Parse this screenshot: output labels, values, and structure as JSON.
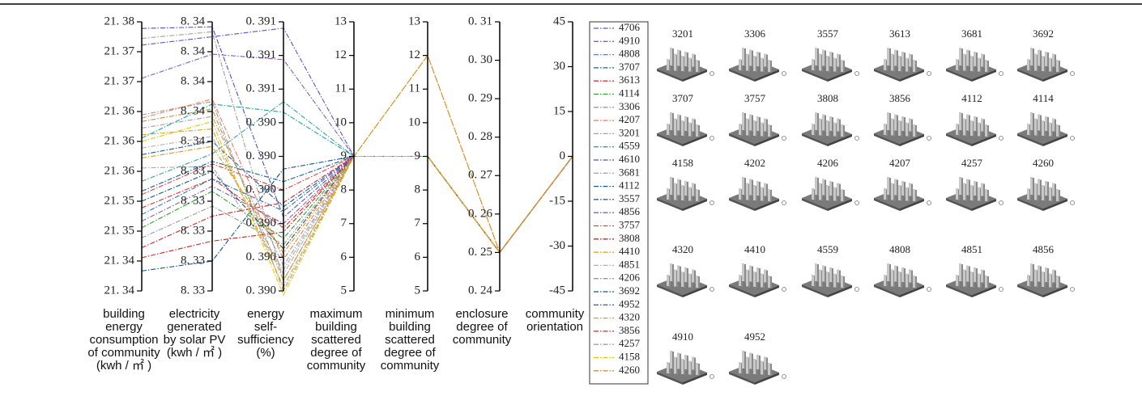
{
  "chart_data": {
    "type": "parallel",
    "dashed": true,
    "axes": [
      {
        "label": [
          "building",
          "energy",
          "consumption",
          "of community",
          "(kwh / ㎡ )"
        ],
        "ylim": [
          21.3375,
          21.378
        ],
        "yticks": [
          {
            "value": 21.3375,
            "label": "21. 34"
          },
          {
            "value": 21.342,
            "label": "21. 34"
          },
          {
            "value": 21.3465,
            "label": "21. 35"
          },
          {
            "value": 21.351,
            "label": "21. 35"
          },
          {
            "value": 21.3555,
            "label": "21. 36"
          },
          {
            "value": 21.36,
            "label": "21. 36"
          },
          {
            "value": 21.3645,
            "label": "21. 36"
          },
          {
            "value": 21.369,
            "label": "21. 37"
          },
          {
            "value": 21.3735,
            "label": "21. 37"
          },
          {
            "value": 21.378,
            "label": "21. 38"
          }
        ]
      },
      {
        "label": [
          "electricity",
          "generated",
          "by solar PV",
          "(kwh / ㎡ )"
        ],
        "ylim": [
          8.33,
          8.3408
        ],
        "yticks": [
          {
            "value": 8.33,
            "label": "8. 33"
          },
          {
            "value": 8.3312,
            "label": "8. 33"
          },
          {
            "value": 8.3324,
            "label": "8. 33"
          },
          {
            "value": 8.3336,
            "label": "8. 33"
          },
          {
            "value": 8.3348,
            "label": "8. 33"
          },
          {
            "value": 8.336,
            "label": "8. 34"
          },
          {
            "value": 8.3372,
            "label": "8. 34"
          },
          {
            "value": 8.3384,
            "label": "8. 34"
          },
          {
            "value": 8.3396,
            "label": "8. 34"
          },
          {
            "value": 8.3408,
            "label": "8. 34"
          }
        ]
      },
      {
        "label": [
          "energy",
          "self-",
          "sufficiency",
          "(%)"
        ],
        "ylim": [
          0.3896,
          0.39088
        ],
        "yticks": [
          {
            "value": 0.3896,
            "label": "0. 390"
          },
          {
            "value": 0.38976,
            "label": "0. 390"
          },
          {
            "value": 0.38992,
            "label": "0. 390"
          },
          {
            "value": 0.39008,
            "label": "0. 390"
          },
          {
            "value": 0.39024,
            "label": "0. 390"
          },
          {
            "value": 0.3904,
            "label": "0. 390"
          },
          {
            "value": 0.39056,
            "label": "0. 391"
          },
          {
            "value": 0.39072,
            "label": "0. 391"
          },
          {
            "value": 0.39088,
            "label": "0. 391"
          }
        ]
      },
      {
        "label": [
          "maximum",
          "building",
          "scattered",
          "degree of",
          "community"
        ],
        "ylim": [
          5,
          13
        ],
        "yticks": [
          5,
          6,
          7,
          8,
          9,
          10,
          11,
          12,
          13
        ]
      },
      {
        "label": [
          "minimum",
          "building",
          "scattered",
          "degree of",
          "community"
        ],
        "ylim": [
          5,
          13
        ],
        "yticks": [
          5,
          6,
          7,
          8,
          9,
          10,
          11,
          12,
          13
        ]
      },
      {
        "label": [
          "enclosure",
          "degree of",
          "community"
        ],
        "ylim": [
          0.24,
          0.31
        ],
        "yticks": [
          {
            "value": 0.24,
            "label": "0. 24"
          },
          {
            "value": 0.25,
            "label": "0. 25"
          },
          {
            "value": 0.26,
            "label": "0. 26"
          },
          {
            "value": 0.27,
            "label": "0. 27"
          },
          {
            "value": 0.28,
            "label": "0. 28"
          },
          {
            "value": 0.29,
            "label": "0. 29"
          },
          {
            "value": 0.3,
            "label": "0. 30"
          },
          {
            "value": 0.31,
            "label": "0. 31"
          }
        ]
      },
      {
        "label": [
          "community",
          "orientation"
        ],
        "ylim": [
          -45,
          45
        ],
        "yticks": [
          -45,
          -30,
          -15,
          0,
          15,
          30,
          45
        ]
      }
    ],
    "series": [
      {
        "name": "4706",
        "color": "#5b55c8",
        "values": [
          21.3745,
          8.3402,
          0.39085,
          9,
          9,
          0.25,
          0
        ]
      },
      {
        "name": "4910",
        "color": "#8a5cc0",
        "values": [
          21.3695,
          8.3395,
          0.3907,
          9,
          9,
          0.25,
          0
        ]
      },
      {
        "name": "4808",
        "color": "#1aa7a0",
        "values": [
          21.3605,
          8.3375,
          0.39045,
          9,
          9,
          0.25,
          0
        ]
      },
      {
        "name": "3707",
        "color": "#1f5fa0",
        "values": [
          21.358,
          8.336,
          0.39,
          9,
          9,
          0.25,
          0
        ]
      },
      {
        "name": "3613",
        "color": "#e8302a",
        "values": [
          21.35,
          8.3345,
          0.3899,
          9,
          9,
          0.25,
          0
        ]
      },
      {
        "name": "4114",
        "color": "#2ca02c",
        "values": [
          21.347,
          8.334,
          0.38985,
          9,
          9,
          0.25,
          0
        ]
      },
      {
        "name": "3306",
        "color": "#9a9a9a",
        "values": [
          21.364,
          8.3376,
          0.3896,
          9,
          9,
          0.25,
          0
        ]
      },
      {
        "name": "4207",
        "color": "#f07a5a",
        "values": [
          21.3635,
          8.3377,
          0.38975,
          9,
          9,
          0.25,
          0
        ]
      },
      {
        "name": "3201",
        "color": "#a0a0a0",
        "values": [
          21.3755,
          8.3404,
          0.38965,
          9,
          9,
          0.25,
          0
        ]
      },
      {
        "name": "4559",
        "color": "#3aa0a0",
        "values": [
          21.354,
          8.3355,
          0.3905,
          9,
          9,
          0.25,
          0
        ]
      },
      {
        "name": "4610",
        "color": "#5050c0",
        "values": [
          21.377,
          8.3406,
          0.38995,
          9,
          9,
          0.25,
          0
        ]
      },
      {
        "name": "3681",
        "color": "#aaaaaa",
        "values": [
          21.356,
          8.335,
          0.3897,
          9,
          9,
          0.25,
          0
        ]
      },
      {
        "name": "4112",
        "color": "#1060a0",
        "values": [
          21.3525,
          8.3352,
          0.39012,
          9,
          9,
          0.25,
          0
        ]
      },
      {
        "name": "3557",
        "color": "#1a5080",
        "values": [
          21.351,
          8.3348,
          0.3898,
          9,
          9,
          0.25,
          0
        ]
      },
      {
        "name": "4856",
        "color": "#8060b0",
        "values": [
          21.348,
          8.3342,
          0.38992,
          9,
          9,
          0.25,
          0
        ]
      },
      {
        "name": "3757",
        "color": "#e04040",
        "values": [
          21.352,
          8.3351,
          0.39008,
          9,
          9,
          0.25,
          0
        ]
      },
      {
        "name": "3808",
        "color": "#d02020",
        "values": [
          21.3425,
          8.332,
          0.38988,
          9,
          9,
          0.25,
          0
        ]
      },
      {
        "name": "4410",
        "color": "#e89a00",
        "values": [
          21.3575,
          8.3358,
          0.38978,
          9,
          12,
          0.25,
          0
        ]
      },
      {
        "name": "4851",
        "color": "#b0b0b0",
        "values": [
          21.359,
          8.3362,
          0.38968,
          9,
          9,
          0.25,
          0
        ]
      },
      {
        "name": "4206",
        "color": "#999999",
        "values": [
          21.3455,
          8.3334,
          0.38982,
          9,
          9,
          0.25,
          0
        ]
      },
      {
        "name": "3692",
        "color": "#1050a0",
        "values": [
          21.3405,
          8.3312,
          0.39018,
          9,
          9,
          0.25,
          0
        ]
      },
      {
        "name": "4952",
        "color": "#3070c0",
        "values": [
          21.349,
          8.3345,
          0.38998,
          9,
          9,
          0.25,
          0
        ]
      },
      {
        "name": "4320",
        "color": "#e0a020",
        "values": [
          21.361,
          8.3365,
          0.38962,
          9,
          9,
          0.25,
          0
        ]
      },
      {
        "name": "3856",
        "color": "#e02020",
        "values": [
          21.344,
          8.333,
          0.39002,
          9,
          9,
          0.25,
          0
        ]
      },
      {
        "name": "4257",
        "color": "#a0a0a0",
        "values": [
          21.362,
          8.337,
          0.38972,
          9,
          9,
          0.25,
          0
        ]
      },
      {
        "name": "4158",
        "color": "#f0c000",
        "values": [
          21.36,
          8.3368,
          0.38958,
          9,
          9,
          0.25,
          0
        ]
      },
      {
        "name": "4260",
        "color": "#d98a30",
        "values": [
          21.363,
          8.3373,
          0.38965,
          9,
          12,
          0.25,
          0
        ]
      }
    ]
  },
  "thumbnails": {
    "labels": [
      [
        "3201",
        "3306",
        "3557",
        "3613",
        "3681",
        "3692"
      ],
      [
        "3707",
        "3757",
        "3808",
        "3856",
        "4112",
        "4114"
      ],
      [
        "4158",
        "4202",
        "4206",
        "4207",
        "4257",
        "4260"
      ],
      [
        "4320",
        "4410",
        "4559",
        "4808",
        "4851",
        "4856"
      ],
      [
        "4910",
        "4952"
      ]
    ]
  }
}
